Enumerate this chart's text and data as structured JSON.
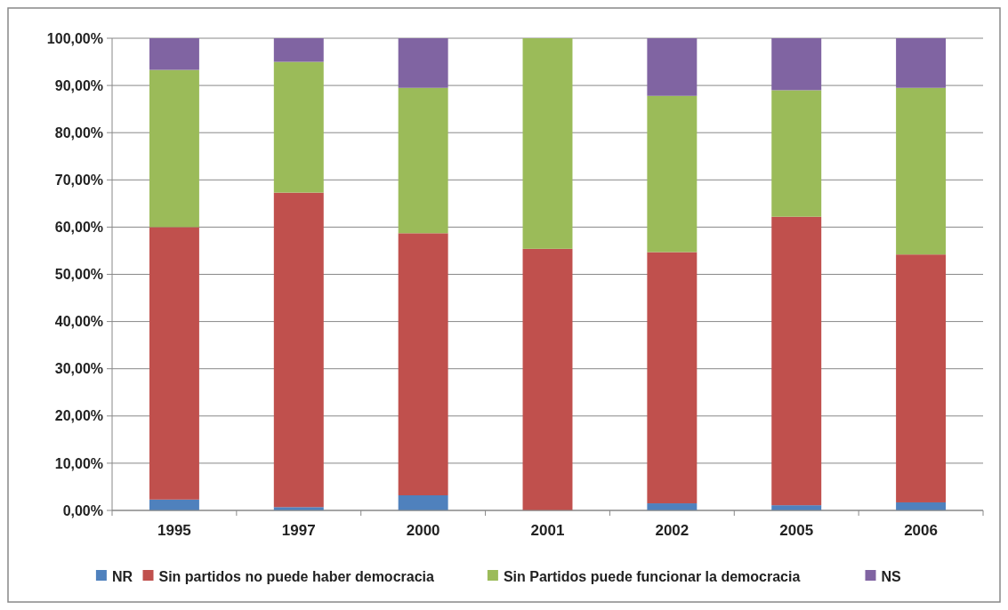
{
  "chart_data": {
    "type": "bar",
    "stacked": true,
    "categories": [
      "1995",
      "1997",
      "2000",
      "2001",
      "2002",
      "2005",
      "2006"
    ],
    "series": [
      {
        "name": "NR",
        "color": "#4f81bd",
        "values": [
          2.3,
          0.7,
          3.2,
          0,
          1.5,
          1.1,
          1.7
        ]
      },
      {
        "name": "Sin partidos no puede haber democracia",
        "color": "#c0504d",
        "values": [
          57.7,
          66.6,
          55.5,
          55.4,
          53.2,
          61.1,
          52.5
        ]
      },
      {
        "name": "Sin Partidos puede funcionar la democracia",
        "color": "#9bbb59",
        "values": [
          33.3,
          27.7,
          30.8,
          44.6,
          33.1,
          26.8,
          35.3
        ]
      },
      {
        "name": "NS",
        "color": "#8064a2",
        "values": [
          6.7,
          5.0,
          10.5,
          0,
          12.2,
          11.0,
          10.5
        ]
      }
    ],
    "ylim": [
      0,
      100
    ],
    "yticks": [
      {
        "value": 0,
        "label": "0,00%"
      },
      {
        "value": 10,
        "label": "10,00%"
      },
      {
        "value": 20,
        "label": "20,00%"
      },
      {
        "value": 30,
        "label": "30,00%"
      },
      {
        "value": 40,
        "label": "40,00%"
      },
      {
        "value": 50,
        "label": "50,00%"
      },
      {
        "value": 60,
        "label": "60,00%"
      },
      {
        "value": 70,
        "label": "70,00%"
      },
      {
        "value": 80,
        "label": "80,00%"
      },
      {
        "value": 90,
        "label": "90,00%"
      },
      {
        "value": 100,
        "label": "100,00%"
      }
    ],
    "grid": "y",
    "legend": "bottom"
  }
}
